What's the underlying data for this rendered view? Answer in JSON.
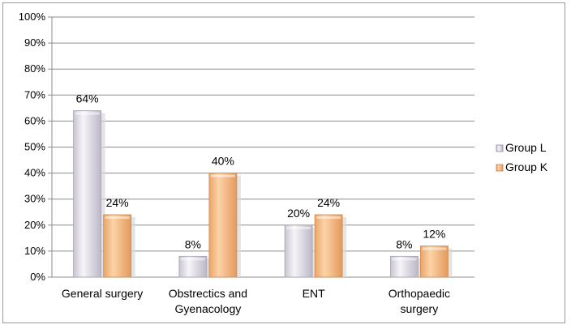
{
  "chart_data": {
    "type": "bar",
    "categories": [
      [
        "General surgery"
      ],
      [
        "Obstrectics and",
        "Gyenacology"
      ],
      [
        "ENT"
      ],
      [
        "Orthopaedic",
        "surgery"
      ]
    ],
    "series": [
      {
        "name": "Group L",
        "values": [
          64,
          8,
          20,
          8
        ],
        "labels": [
          "64%",
          "8%",
          "20%",
          "8%"
        ],
        "color": "#e8e4ec"
      },
      {
        "name": "Group K",
        "values": [
          24,
          40,
          24,
          12
        ],
        "labels": [
          "24%",
          "40%",
          "24%",
          "12%"
        ],
        "color": "#f7bf8b"
      }
    ],
    "yticks": [
      "0%",
      "10%",
      "20%",
      "30%",
      "40%",
      "50%",
      "60%",
      "70%",
      "80%",
      "90%",
      "100%"
    ],
    "ylim": [
      0,
      100
    ],
    "grid": true,
    "legend": "right",
    "title": "",
    "xlabel": "",
    "ylabel": ""
  }
}
